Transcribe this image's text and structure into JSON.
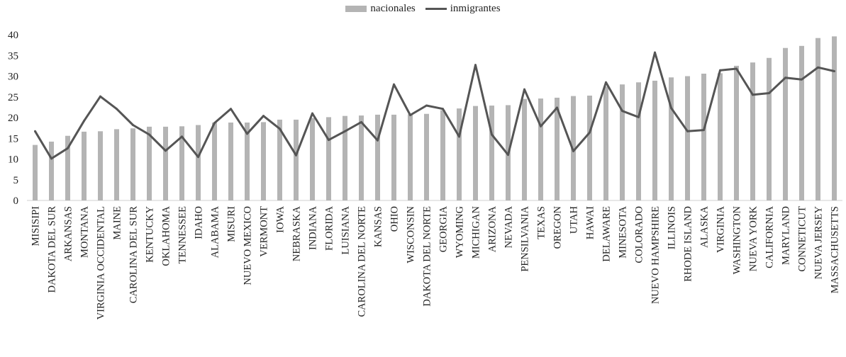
{
  "chart_data": {
    "type": "bar",
    "title": "",
    "xlabel": "",
    "ylabel": "",
    "ylim": [
      0,
      40
    ],
    "yticks": [
      0,
      5,
      10,
      15,
      20,
      25,
      30,
      35,
      40
    ],
    "grid": false,
    "legend_position": "top-center",
    "colors": {
      "nacionales": "#b4b4b4",
      "inmigrantes": "#555555"
    },
    "categories": [
      "MISISIPI",
      "DAKOTA DEL SUR",
      "ARKANSAS",
      "MONTANA",
      "VIRGINIA OCCIDENTAL",
      "MAINE",
      "CAROLINA DEL SUR",
      "KENTUCKY",
      "OKLAHOMA",
      "TENNESSEE",
      "IDAHO",
      "ALABAMA",
      "MISURI",
      "NUEVO MEXICO",
      "VERMONT",
      "IOWA",
      "NEBRASKA",
      "INDIANA",
      "FLORIDA",
      "LUISIANA",
      "CAROLINA DEL NORTE",
      "KANSAS",
      "OHIO",
      "WISCONSIN",
      "DAKOTA DEL NORTE",
      "GEORGIA",
      "WYOMING",
      "MICHIGAN",
      "ARIZONA",
      "NEVADA",
      "PENSILVANIA",
      "TEXAS",
      "OREGON",
      "UTAH",
      "HAWAI",
      "DELAWARE",
      "MINESOTA",
      "COLORADO",
      "NUEVO HAMPSHIRE",
      "ILLINOIS",
      "RHODE ISLAND",
      "ALASKA",
      "VIRGINIA",
      "WASHINGTON",
      "NUEVA YORK",
      "CALIFORNIA",
      "MARYLAND",
      "CONNETICUT",
      "NUEVA JERSEY",
      "MASSACHUSETTS"
    ],
    "series": [
      {
        "name": "nacionales",
        "type": "bar",
        "values": [
          13.4,
          14.2,
          15.6,
          16.6,
          16.7,
          17.2,
          17.4,
          17.8,
          17.8,
          17.9,
          18.2,
          18.8,
          18.8,
          18.8,
          18.9,
          19.5,
          19.5,
          19.9,
          20.1,
          20.4,
          20.5,
          20.7,
          20.7,
          20.8,
          20.9,
          21.8,
          22.2,
          22.8,
          22.9,
          23.0,
          24.5,
          24.6,
          24.8,
          25.2,
          25.3,
          27.5,
          28.0,
          28.5,
          28.9,
          29.7,
          30.0,
          30.6,
          30.7,
          32.5,
          33.3,
          34.4,
          36.8,
          37.3,
          39.2,
          39.6
        ]
      },
      {
        "name": "inmigrantes",
        "type": "line",
        "values": [
          16.7,
          10.1,
          12.6,
          19.2,
          25.1,
          22.1,
          18.2,
          15.9,
          12.0,
          15.4,
          10.5,
          18.7,
          22.1,
          16.1,
          20.4,
          17.3,
          10.9,
          21.0,
          14.6,
          16.7,
          18.9,
          14.5,
          28.0,
          20.6,
          22.9,
          22.1,
          15.4,
          32.7,
          15.9,
          11.0,
          26.8,
          17.9,
          22.4,
          11.9,
          16.4,
          28.5,
          21.6,
          20.1,
          35.7,
          22.3,
          16.7,
          17.0,
          31.4,
          31.8,
          25.5,
          25.9,
          29.6,
          29.2,
          32.1,
          31.2
        ]
      }
    ]
  }
}
